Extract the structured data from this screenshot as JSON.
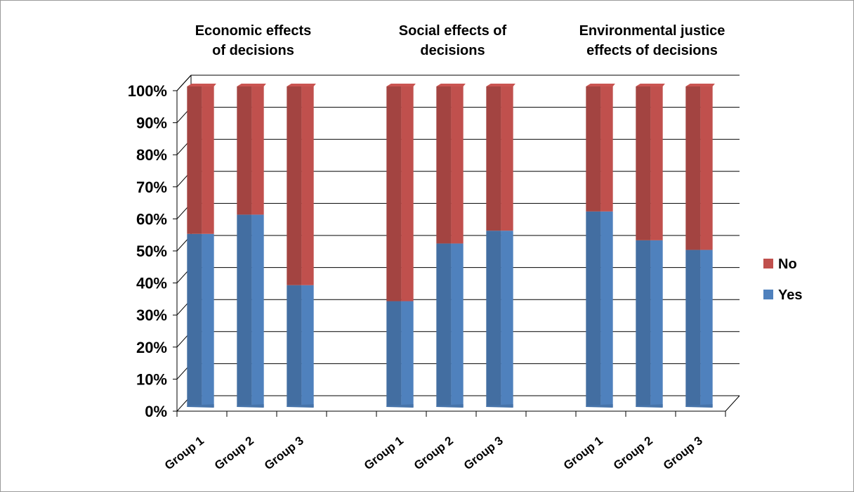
{
  "chart_data": {
    "type": "bar",
    "stacked": true,
    "three_d": true,
    "y_tick_labels": [
      "0%",
      "10%",
      "20%",
      "30%",
      "40%",
      "50%",
      "60%",
      "70%",
      "80%",
      "90%",
      "100%"
    ],
    "ylim": [
      0,
      100
    ],
    "grid": true,
    "legend_position": "right",
    "panels": [
      {
        "title_lines": [
          "Economic effects",
          "of decisions"
        ],
        "categories": [
          "Group 1",
          "Group 2",
          "Group 3"
        ]
      },
      {
        "title_lines": [
          "Social effects of",
          "decisions"
        ],
        "categories": [
          "Group 1",
          "Group 2",
          "Group 3"
        ]
      },
      {
        "title_lines": [
          "Environmental justice",
          "effects of decisions"
        ],
        "categories": [
          "Group 1",
          "Group 2",
          "Group 3"
        ]
      }
    ],
    "series": [
      {
        "name": "Yes",
        "color": "#4f81bd",
        "values": [
          54,
          60,
          38,
          33,
          51,
          55,
          61,
          52,
          49
        ]
      },
      {
        "name": "No",
        "color": "#c0504d",
        "values": [
          46,
          40,
          62,
          67,
          49,
          45,
          39,
          48,
          51
        ]
      }
    ],
    "legend": [
      {
        "name": "No",
        "color": "#c0504d"
      },
      {
        "name": "Yes",
        "color": "#4f81bd"
      }
    ]
  }
}
